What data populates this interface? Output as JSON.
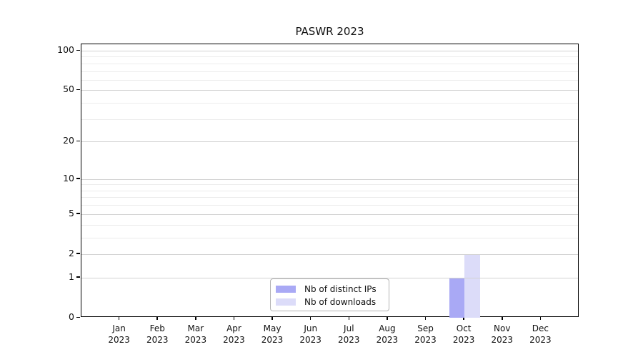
{
  "chart_data": {
    "type": "bar",
    "title": "PASWR 2023",
    "categories": [
      "Jan",
      "Feb",
      "Mar",
      "Apr",
      "May",
      "Jun",
      "Jul",
      "Aug",
      "Sep",
      "Oct",
      "Nov",
      "Dec"
    ],
    "category_year": "2023",
    "series": [
      {
        "name": "Nb of distinct IPs",
        "color": "#a9a9f5",
        "values": [
          0,
          0,
          0,
          0,
          0,
          0,
          0,
          0,
          0,
          1,
          0,
          0
        ]
      },
      {
        "name": "Nb of downloads",
        "color": "#dcdcf9",
        "values": [
          0,
          0,
          0,
          0,
          0,
          0,
          0,
          0,
          0,
          2,
          0,
          0
        ]
      }
    ],
    "xlabel": "",
    "ylabel": "",
    "yscale": "log1p",
    "ylim": [
      0,
      100
    ],
    "y_ticks": [
      0,
      1,
      2,
      5,
      10,
      20,
      50,
      100
    ],
    "y_minor_gridlines": [
      3,
      4,
      6,
      7,
      8,
      9,
      30,
      40,
      60,
      70,
      80,
      90
    ],
    "grid": "horizontal, drawn over bars",
    "legend_position": "bottom-center"
  }
}
